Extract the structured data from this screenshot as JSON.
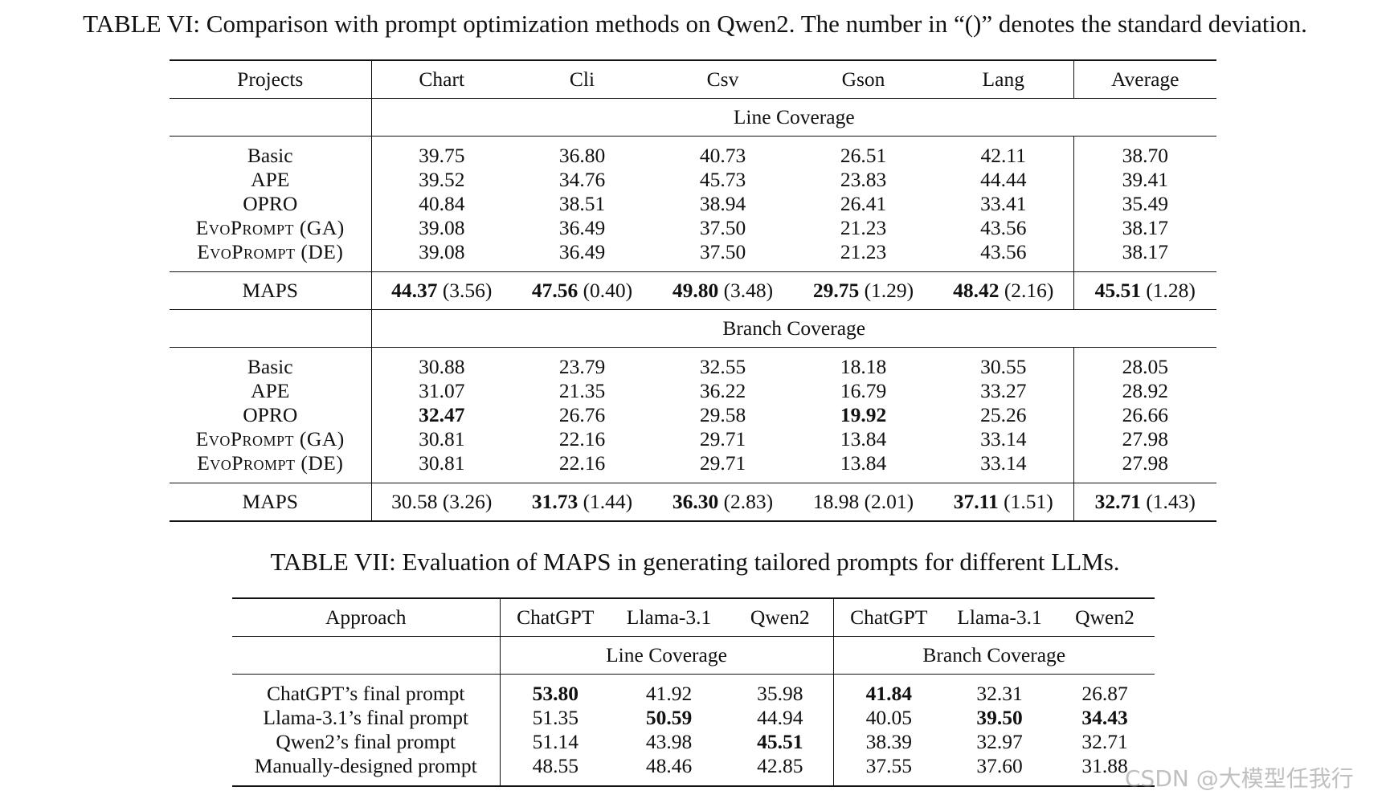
{
  "table6": {
    "caption": "TABLE VI: Comparison with prompt optimization methods on Qwen2. The number in “()” denotes the standard deviation.",
    "columns": [
      "Projects",
      "Chart",
      "Cli",
      "Csv",
      "Gson",
      "Lang",
      "Average"
    ],
    "sections": [
      {
        "title": "Line Coverage",
        "rows": [
          {
            "name": "Basic",
            "cells": [
              {
                "v": "39.75"
              },
              {
                "v": "36.80"
              },
              {
                "v": "40.73"
              },
              {
                "v": "26.51"
              },
              {
                "v": "42.11"
              },
              {
                "v": "38.70"
              }
            ]
          },
          {
            "name": "APE",
            "cells": [
              {
                "v": "39.52"
              },
              {
                "v": "34.76"
              },
              {
                "v": "45.73"
              },
              {
                "v": "23.83"
              },
              {
                "v": "44.44"
              },
              {
                "v": "39.41"
              }
            ]
          },
          {
            "name": "OPRO",
            "cells": [
              {
                "v": "40.84"
              },
              {
                "v": "38.51"
              },
              {
                "v": "38.94"
              },
              {
                "v": "26.41"
              },
              {
                "v": "33.41"
              },
              {
                "v": "35.49"
              }
            ]
          },
          {
            "name": "EvoPrompt (GA)",
            "sc": true,
            "cells": [
              {
                "v": "39.08"
              },
              {
                "v": "36.49"
              },
              {
                "v": "37.50"
              },
              {
                "v": "21.23"
              },
              {
                "v": "43.56"
              },
              {
                "v": "38.17"
              }
            ]
          },
          {
            "name": "EvoPrompt (DE)",
            "sc": true,
            "cells": [
              {
                "v": "39.08"
              },
              {
                "v": "36.49"
              },
              {
                "v": "37.50"
              },
              {
                "v": "21.23"
              },
              {
                "v": "43.56"
              },
              {
                "v": "38.17"
              }
            ]
          }
        ],
        "maps": {
          "name": "MAPS",
          "cells": [
            {
              "v": "44.37",
              "sd": "(3.56)",
              "b": true
            },
            {
              "v": "47.56",
              "sd": "(0.40)",
              "b": true
            },
            {
              "v": "49.80",
              "sd": "(3.48)",
              "b": true
            },
            {
              "v": "29.75",
              "sd": "(1.29)",
              "b": true
            },
            {
              "v": "48.42",
              "sd": "(2.16)",
              "b": true
            },
            {
              "v": "45.51",
              "sd": "(1.28)",
              "b": true
            }
          ]
        }
      },
      {
        "title": "Branch Coverage",
        "rows": [
          {
            "name": "Basic",
            "cells": [
              {
                "v": "30.88"
              },
              {
                "v": "23.79"
              },
              {
                "v": "32.55"
              },
              {
                "v": "18.18"
              },
              {
                "v": "30.55"
              },
              {
                "v": "28.05"
              }
            ]
          },
          {
            "name": "APE",
            "cells": [
              {
                "v": "31.07"
              },
              {
                "v": "21.35"
              },
              {
                "v": "36.22"
              },
              {
                "v": "16.79"
              },
              {
                "v": "33.27"
              },
              {
                "v": "28.92"
              }
            ]
          },
          {
            "name": "OPRO",
            "cells": [
              {
                "v": "32.47",
                "b": true
              },
              {
                "v": "26.76"
              },
              {
                "v": "29.58"
              },
              {
                "v": "19.92",
                "b": true
              },
              {
                "v": "25.26"
              },
              {
                "v": "26.66"
              }
            ]
          },
          {
            "name": "EvoPrompt (GA)",
            "sc": true,
            "cells": [
              {
                "v": "30.81"
              },
              {
                "v": "22.16"
              },
              {
                "v": "29.71"
              },
              {
                "v": "13.84"
              },
              {
                "v": "33.14"
              },
              {
                "v": "27.98"
              }
            ]
          },
          {
            "name": "EvoPrompt (DE)",
            "sc": true,
            "cells": [
              {
                "v": "30.81"
              },
              {
                "v": "22.16"
              },
              {
                "v": "29.71"
              },
              {
                "v": "13.84"
              },
              {
                "v": "33.14"
              },
              {
                "v": "27.98"
              }
            ]
          }
        ],
        "maps": {
          "name": "MAPS",
          "cells": [
            {
              "v": "30.58",
              "sd": "(3.26)"
            },
            {
              "v": "31.73",
              "sd": "(1.44)",
              "b": true
            },
            {
              "v": "36.30",
              "sd": "(2.83)",
              "b": true
            },
            {
              "v": "18.98",
              "sd": "(2.01)"
            },
            {
              "v": "37.11",
              "sd": "(1.51)",
              "b": true
            },
            {
              "v": "32.71",
              "sd": "(1.43)",
              "b": true
            }
          ]
        }
      }
    ]
  },
  "table7": {
    "caption": "TABLE VII: Evaluation of MAPS in generating tailored prompts for different LLMs.",
    "columns": [
      "Approach",
      "ChatGPT",
      "Llama-3.1",
      "Qwen2",
      "ChatGPT",
      "Llama-3.1",
      "Qwen2"
    ],
    "groups": [
      "Line Coverage",
      "Branch Coverage"
    ],
    "rows": [
      {
        "name": "ChatGPT’s final prompt",
        "cells": [
          {
            "v": "53.80",
            "b": true
          },
          {
            "v": "41.92"
          },
          {
            "v": "35.98"
          },
          {
            "v": "41.84",
            "b": true
          },
          {
            "v": "32.31"
          },
          {
            "v": "26.87"
          }
        ]
      },
      {
        "name": "Llama-3.1’s final prompt",
        "cells": [
          {
            "v": "51.35"
          },
          {
            "v": "50.59",
            "b": true
          },
          {
            "v": "44.94"
          },
          {
            "v": "40.05"
          },
          {
            "v": "39.50",
            "b": true
          },
          {
            "v": "34.43",
            "b": true
          }
        ]
      },
      {
        "name": "Qwen2’s final prompt",
        "cells": [
          {
            "v": "51.14"
          },
          {
            "v": "43.98"
          },
          {
            "v": "45.51",
            "b": true
          },
          {
            "v": "38.39"
          },
          {
            "v": "32.97"
          },
          {
            "v": "32.71"
          }
        ]
      },
      {
        "name": "Manually-designed prompt",
        "cells": [
          {
            "v": "48.55"
          },
          {
            "v": "48.46"
          },
          {
            "v": "42.85"
          },
          {
            "v": "37.55"
          },
          {
            "v": "37.60"
          },
          {
            "v": "31.88"
          }
        ]
      }
    ]
  },
  "watermark": "CSDN @大模型任我行"
}
